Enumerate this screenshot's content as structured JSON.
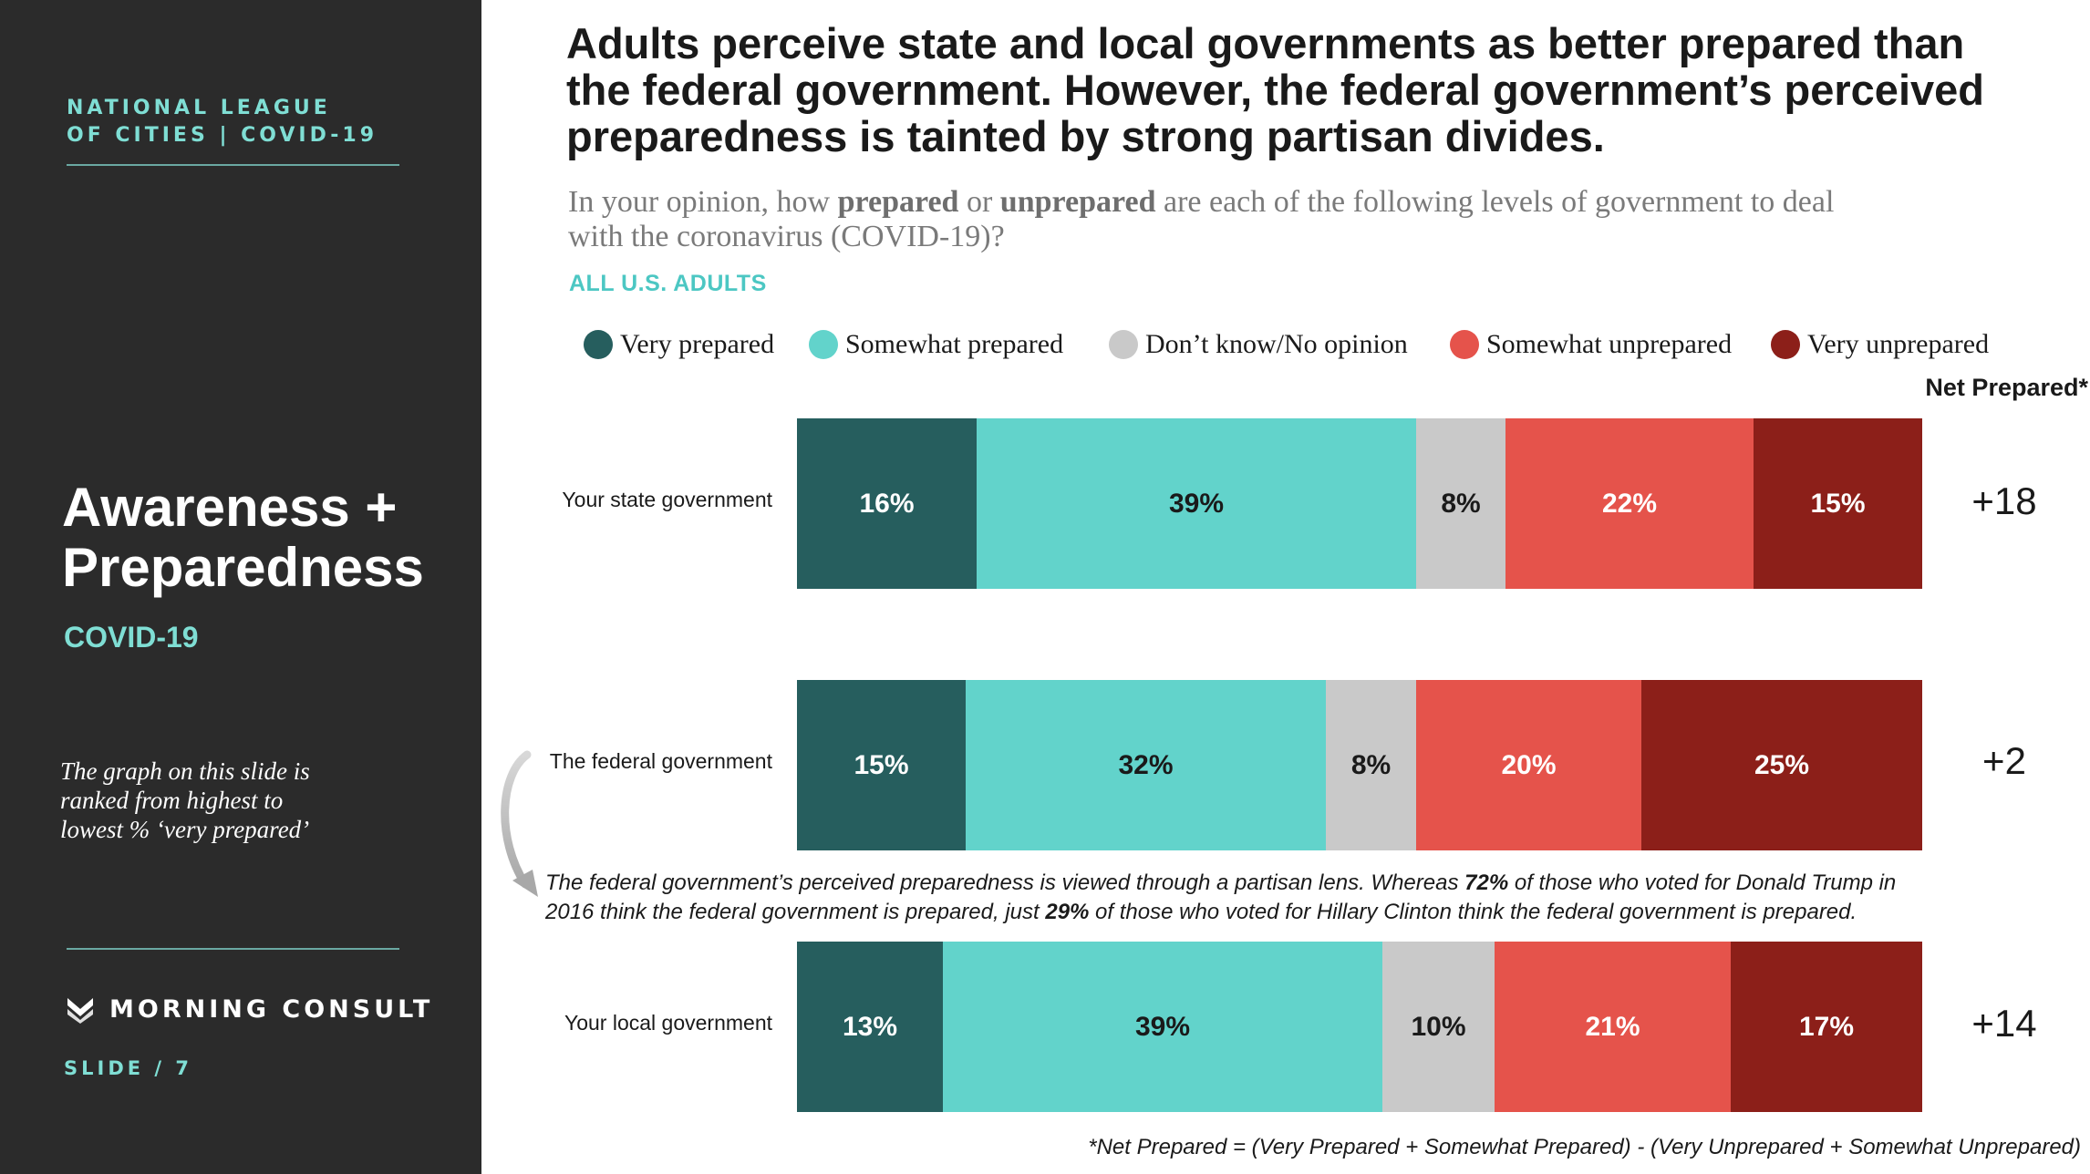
{
  "sidebar": {
    "org_line1": "NATIONAL LEAGUE",
    "org_line2": "OF CITIES | COVID-19",
    "section_title_line1": "Awareness +",
    "section_title_line2": "Preparedness",
    "section_sub": "COVID-19",
    "note_line1": "The graph on this slide is",
    "note_line2": "ranked from highest to",
    "note_line3": "lowest % ‘very prepared’",
    "logo_text": "MORNING CONSULT",
    "slide_label": "SLIDE /  7"
  },
  "headline": {
    "line1": "Adults perceive state and local governments as better prepared than",
    "line2": "the federal government. However, the federal government’s perceived",
    "line3": "preparedness is tainted by strong partisan divides."
  },
  "question": {
    "part1": "In your opinion, how ",
    "bold1": "prepared",
    "part2": " or ",
    "bold2": "unprepared",
    "part3": " are each of the following levels of government to deal",
    "line2": "with the coronavirus (COVID-19)?"
  },
  "audience": "ALL U.S. ADULTS",
  "callout": {
    "line1_a": "The federal government’s perceived preparedness is viewed through a partisan lens. Whereas ",
    "line1_b": "72%",
    "line1_c": " of those who voted for Donald Trump in",
    "line2_a": "2016 think the federal government is prepared, just ",
    "line2_b": "29%",
    "line2_c": " of those who voted for Hillary Clinton think the federal government is prepared."
  },
  "footnote": "*Net Prepared = (Very Prepared + Somewhat Prepared) - (Very Unprepared + Somewhat Unprepared)",
  "chart_data": {
    "type": "bar",
    "orientation": "horizontal",
    "stacked": true,
    "normalized": true,
    "categories": [
      "Your state government",
      "The federal government",
      "Your local government"
    ],
    "series": [
      {
        "name": "Very prepared",
        "color": "#265e5e",
        "text_color": "#ffffff",
        "values": [
          16,
          15,
          13
        ],
        "labels": [
          "16%",
          "15%",
          "13%"
        ]
      },
      {
        "name": "Somewhat prepared",
        "color": "#62d3cb",
        "text_color": "#1a1a1a",
        "values": [
          39,
          32,
          39
        ],
        "labels": [
          "39%",
          "32%",
          "39%"
        ]
      },
      {
        "name": "Don’t know/No opinion",
        "color": "#c9c9c9",
        "text_color": "#1a1a1a",
        "values": [
          8,
          8,
          10
        ],
        "labels": [
          "8%",
          "8%",
          "10%"
        ]
      },
      {
        "name": "Somewhat unprepared",
        "color": "#e5534b",
        "text_color": "#ffffff",
        "values": [
          22,
          20,
          21
        ],
        "labels": [
          "22%",
          "20%",
          "21%"
        ]
      },
      {
        "name": "Very unprepared",
        "color": "#8c1f19",
        "text_color": "#ffffff",
        "values": [
          15,
          25,
          17
        ],
        "labels": [
          "15%",
          "25%",
          "17%"
        ]
      }
    ],
    "net_header": "Net Prepared*",
    "net_prepared": [
      "+18",
      "+2",
      "+14"
    ],
    "legend_position": "top",
    "grid": false
  }
}
